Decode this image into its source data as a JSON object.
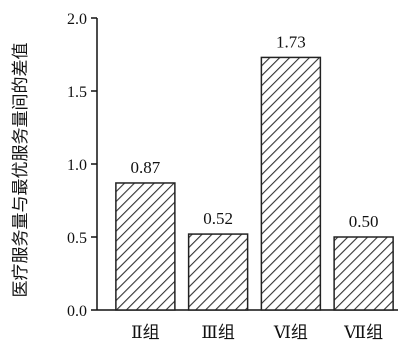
{
  "chart_data": {
    "type": "bar",
    "title": "",
    "xlabel": "",
    "ylabel": "医疗服务量与最优服务量间的差值",
    "categories": [
      "Ⅱ组",
      "Ⅲ组",
      "Ⅵ组",
      "Ⅶ组"
    ],
    "values": [
      0.87,
      0.52,
      1.73,
      0.5
    ],
    "data_labels": [
      "0.87",
      "0.52",
      "1.73",
      "0.50"
    ],
    "ylim": [
      0,
      2.0
    ],
    "yticks": [
      "0.0",
      "0.5",
      "1.0",
      "1.5",
      "2.0"
    ],
    "grid": false,
    "bar_fill": "diagonal-hatch",
    "colors": {
      "bar_edge": "#222222",
      "hatch": "#333333",
      "axis": "#111111"
    }
  }
}
